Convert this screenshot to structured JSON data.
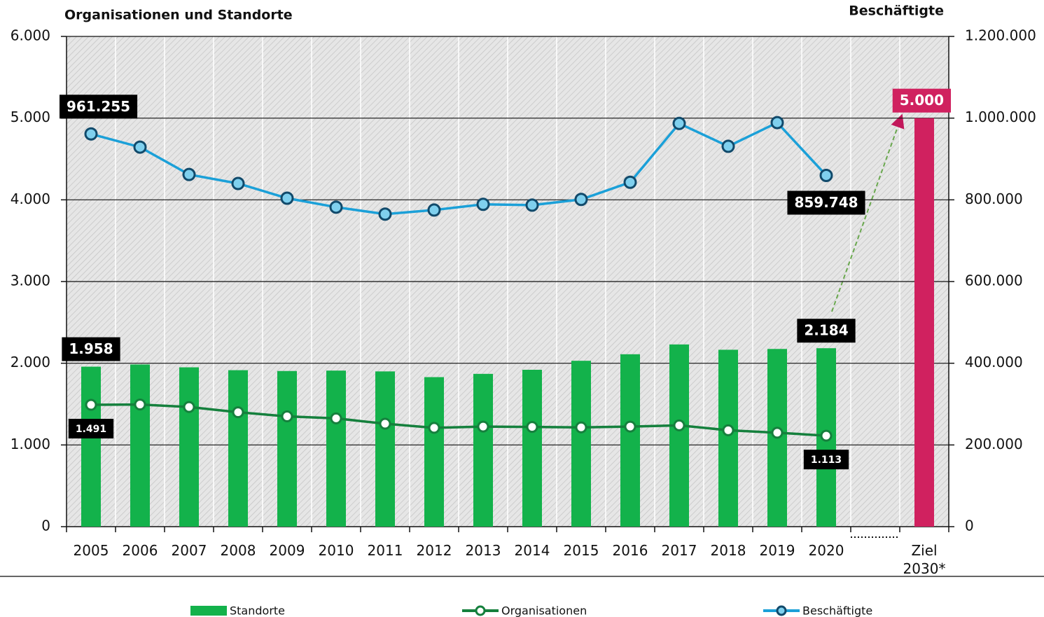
{
  "chart_data": {
    "type": "bar",
    "y_title": "Organisationen und Standorte",
    "y2_title": "Beschäftigte",
    "categories": [
      "2005",
      "2006",
      "2007",
      "2008",
      "2009",
      "2010",
      "2011",
      "2012",
      "2013",
      "2014",
      "2015",
      "2016",
      "2017",
      "2018",
      "2019",
      "2020",
      null,
      "Ziel 2030*"
    ],
    "ylim": [
      0,
      6000
    ],
    "yticks": [
      0,
      {
        "value": 1000,
        "label": "1.000"
      },
      {
        "value": 2000,
        "label": "2.000"
      },
      {
        "value": 3000,
        "label": "3.000"
      },
      {
        "value": 4000,
        "label": "4.000"
      },
      {
        "value": 5000,
        "label": "5.000"
      },
      {
        "value": 6000,
        "label": "6.000"
      }
    ],
    "y2lim": [
      0,
      1200000
    ],
    "y2ticks": [
      0,
      {
        "value": 200000,
        "label": "200.000"
      },
      {
        "value": 400000,
        "label": "400.000"
      },
      {
        "value": 600000,
        "label": "600.000"
      },
      {
        "value": 800000,
        "label": "800.000"
      },
      {
        "value": 1000000,
        "label": "1.000.000"
      },
      {
        "value": 1200000,
        "label": "1.200.000"
      }
    ],
    "grid": true,
    "series": [
      {
        "name": "Standorte",
        "type": "bar",
        "color": "#13b24b",
        "colors": [
          "#13b24b",
          "#13b24b",
          "#13b24b",
          "#13b24b",
          "#13b24b",
          "#13b24b",
          "#13b24b",
          "#13b24b",
          "#13b24b",
          "#13b24b",
          "#13b24b",
          "#13b24b",
          "#13b24b",
          "#13b24b",
          "#13b24b",
          "#13b24b",
          null,
          "#d0215f"
        ],
        "values": [
          1958,
          1985,
          1950,
          1915,
          1905,
          1910,
          1900,
          1830,
          1870,
          1920,
          2030,
          2110,
          2230,
          2165,
          2175,
          2184,
          null,
          5000
        ],
        "value_labels": [
          "1.958",
          null,
          null,
          null,
          null,
          null,
          null,
          null,
          null,
          null,
          null,
          null,
          null,
          null,
          null,
          "2.184",
          null,
          "5.000"
        ]
      },
      {
        "name": "Organisationen",
        "type": "line",
        "color": "#15803d",
        "values": [
          1491,
          1495,
          1465,
          1400,
          1350,
          1325,
          1260,
          1210,
          1225,
          1220,
          1215,
          1225,
          1240,
          1180,
          1150,
          1113,
          null,
          null
        ],
        "value_labels": [
          "1.491",
          null,
          null,
          null,
          null,
          null,
          null,
          null,
          null,
          null,
          null,
          null,
          null,
          null,
          null,
          "1.113",
          null,
          null
        ]
      },
      {
        "name": "Beschäftigte",
        "type": "line",
        "axis": "y2",
        "color": "#1ba0d8",
        "values": [
          961255,
          929000,
          862000,
          840000,
          804000,
          782000,
          765000,
          775000,
          789000,
          787000,
          801000,
          843000,
          987000,
          931000,
          989000,
          859748,
          null,
          null
        ],
        "value_labels": [
          "961.255",
          null,
          null,
          null,
          null,
          null,
          null,
          null,
          null,
          null,
          null,
          null,
          null,
          null,
          null,
          "859.748",
          null,
          null
        ]
      }
    ]
  }
}
